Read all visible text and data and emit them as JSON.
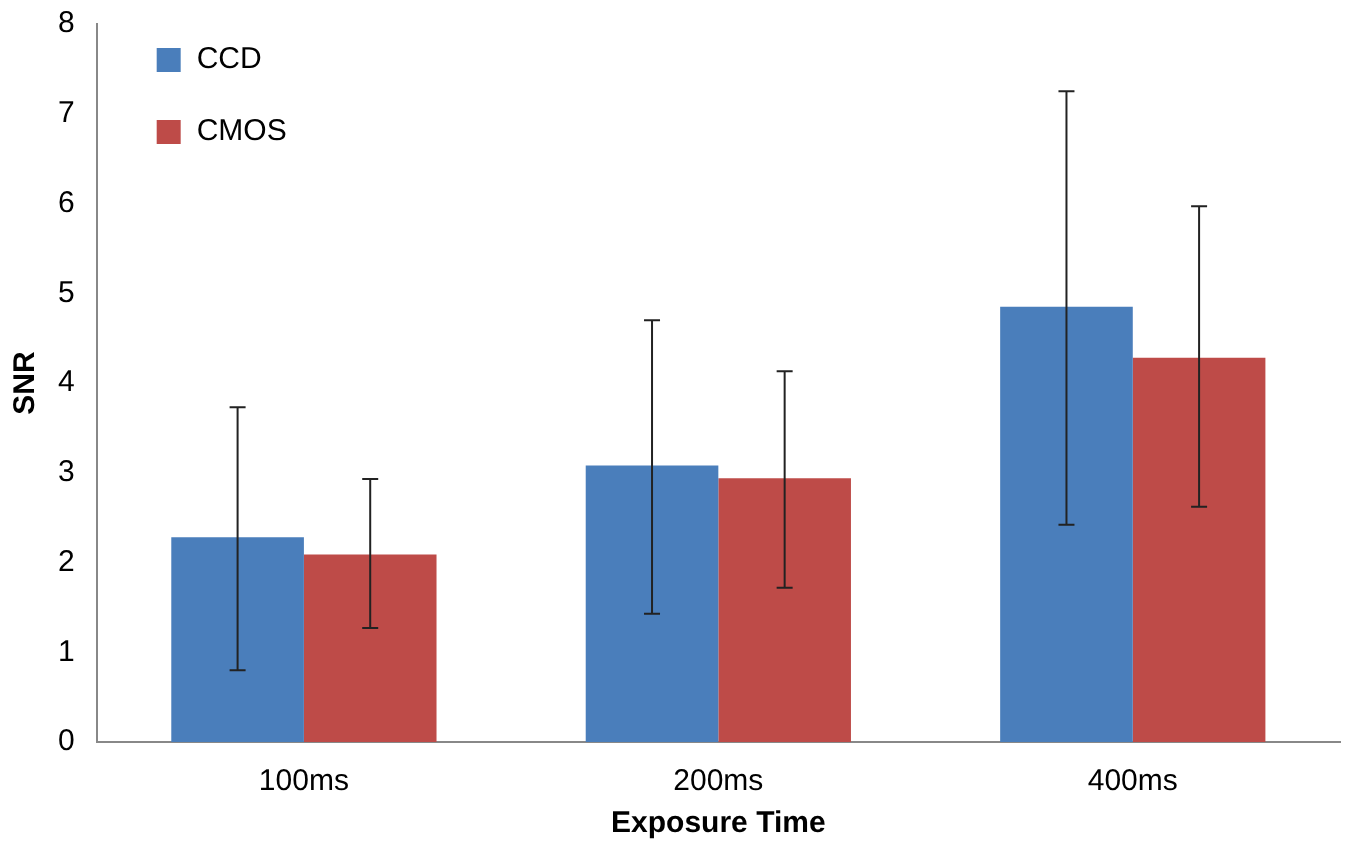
{
  "chart_data": {
    "type": "bar",
    "xlabel": "Exposure Time",
    "ylabel": "SNR",
    "categories": [
      "100ms",
      "200ms",
      "400ms"
    ],
    "series": [
      {
        "name": "CCD",
        "color": "#4a7ebb",
        "values": [
          2.28,
          3.08,
          4.85
        ],
        "errors": [
          [
            0.8,
            3.73
          ],
          [
            1.43,
            4.7
          ],
          [
            2.42,
            7.25
          ]
        ]
      },
      {
        "name": "CMOS",
        "color": "#be4b48",
        "values": [
          2.09,
          2.94,
          4.28
        ],
        "errors": [
          [
            1.27,
            2.93
          ],
          [
            1.72,
            4.13
          ],
          [
            2.62,
            5.97
          ]
        ]
      }
    ],
    "ylim": [
      0,
      8
    ],
    "yticks": [
      0,
      1,
      2,
      3,
      4,
      5,
      6,
      7,
      8
    ],
    "grid": false,
    "legend": "top left"
  }
}
